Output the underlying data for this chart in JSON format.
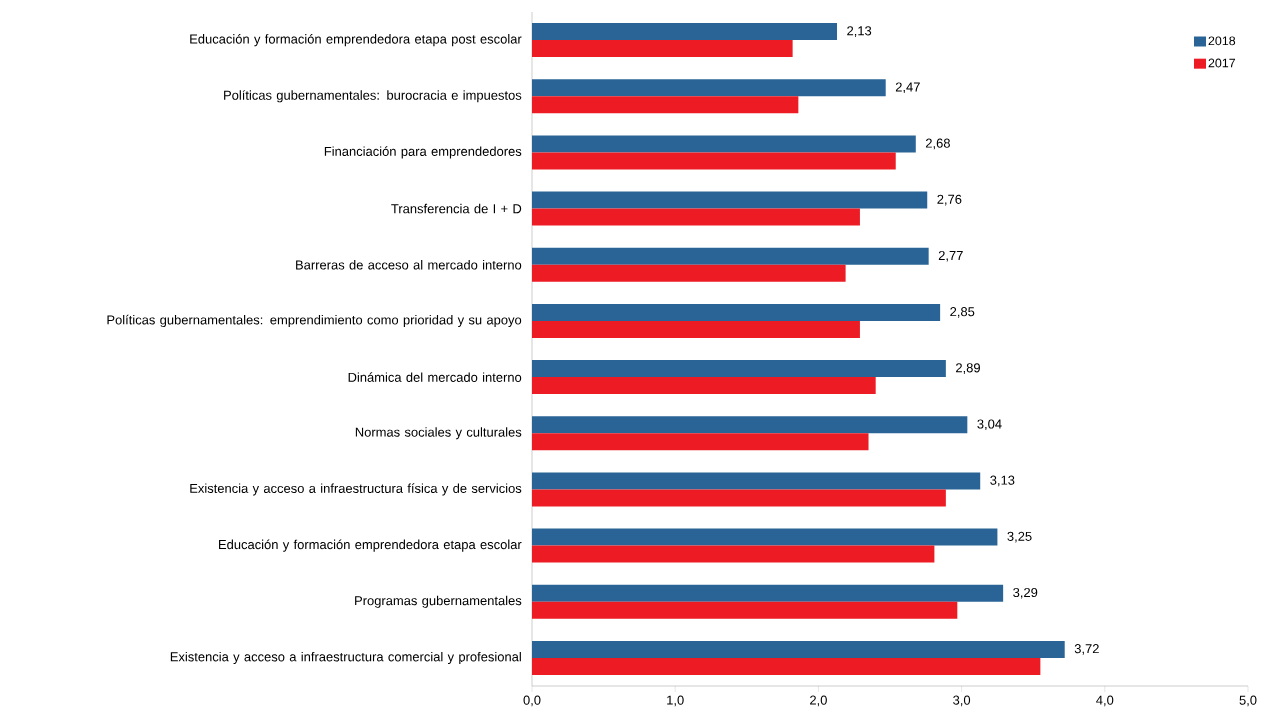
{
  "chart_data": {
    "type": "bar",
    "orientation": "horizontal",
    "categories": [
      "Educación y formación emprendedora etapa post escolar",
      "Políticas gubernamentales: burocracia e impuestos",
      "Financiación para emprendedores",
      "Transferencia de I + D",
      "Barreras de acceso al mercado interno",
      "Políticas gubernamentales: emprendimiento como prioridad y su apoyo",
      "Dinámica del mercado interno",
      "Normas sociales y culturales",
      "Existencia y acceso a infraestructura física y de servicios",
      "Educación y formación emprendedora etapa escolar",
      "Programas gubernamentales",
      "Existencia y acceso a infraestructura comercial y profesional"
    ],
    "series": [
      {
        "name": "2018",
        "color": "#2a6496",
        "values": [
          2.13,
          2.47,
          2.68,
          2.76,
          2.77,
          2.85,
          2.89,
          3.04,
          3.13,
          3.25,
          3.29,
          3.72
        ],
        "value_labels": [
          "2,13",
          "2,47",
          "2,68",
          "2,76",
          "2,77",
          "2,85",
          "2,89",
          "3,04",
          "3,13",
          "3,25",
          "3,29",
          "3,72"
        ]
      },
      {
        "name": "2017",
        "color": "#ed1c24",
        "values": [
          1.82,
          1.86,
          2.54,
          2.29,
          2.19,
          2.29,
          2.4,
          2.35,
          2.89,
          2.81,
          2.97,
          3.55
        ]
      }
    ],
    "xlim": [
      0,
      5
    ],
    "xticks": [
      {
        "value": 0,
        "label": "0,0"
      },
      {
        "value": 1,
        "label": "1,0"
      },
      {
        "value": 2,
        "label": "2,0"
      },
      {
        "value": 3,
        "label": "3,0"
      },
      {
        "value": 4,
        "label": "4,0"
      },
      {
        "value": 5,
        "label": "5,0"
      }
    ],
    "legend": "top right"
  }
}
